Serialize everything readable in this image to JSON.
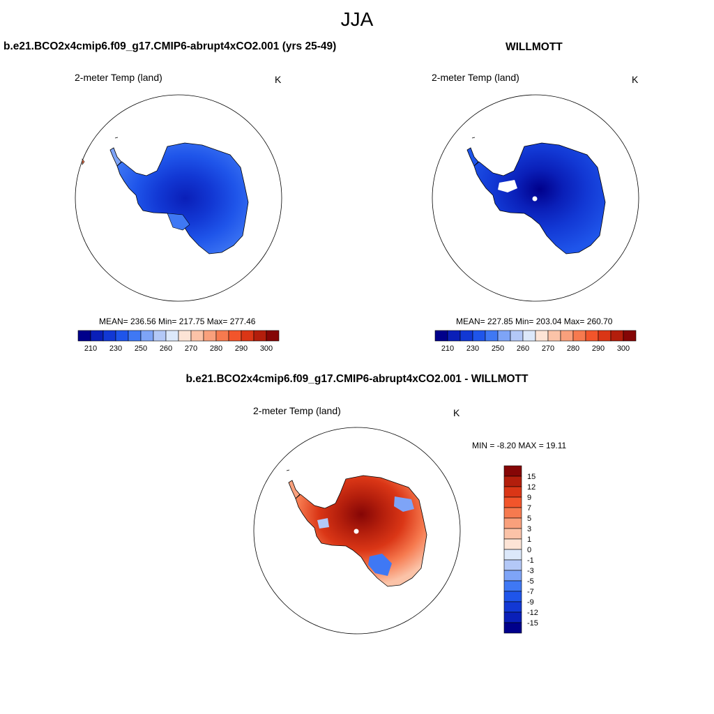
{
  "season": "JJA",
  "panels": [
    {
      "title": "b.e21.BCO2x4cmip6.f09_g17.CMIP6-abrupt4xCO2.001 (yrs 25-49)",
      "variable": "2-meter Temp (land)",
      "units": "K",
      "stats": "MEAN= 236.56  Min= 217.75  Max= 277.46"
    },
    {
      "title": "WILLMOTT",
      "variable": "2-meter Temp (land)",
      "units": "K",
      "stats": "MEAN= 227.85  Min= 203.04  Max= 260.70"
    },
    {
      "title": "b.e21.BCO2x4cmip6.f09_g17.CMIP6-abrupt4xCO2.001 - WILLMOTT",
      "variable": "2-meter Temp (land)",
      "units": "K",
      "stats": "MIN =  -8.20 MAX =  19.11"
    }
  ],
  "temp_colorbar": {
    "colors": [
      "#00008b",
      "#0a1fb8",
      "#1238d4",
      "#1f55ea",
      "#3f78f4",
      "#7ea4f7",
      "#b3c8f7",
      "#dce8fa",
      "#fde4d6",
      "#fbc3a8",
      "#f9a07c",
      "#f67a4f",
      "#f2552b",
      "#da3616",
      "#b31e0c",
      "#850606"
    ],
    "labels": [
      "210",
      "230",
      "250",
      "260",
      "270",
      "280",
      "290",
      "300"
    ]
  },
  "diff_colorbar": {
    "colors": [
      "#850606",
      "#b31e0c",
      "#da3616",
      "#f2552b",
      "#f67a4f",
      "#f9a07c",
      "#fbc3a8",
      "#fde4d6",
      "#dce8fa",
      "#b3c8f7",
      "#7ea4f7",
      "#3f78f4",
      "#1f55ea",
      "#1238d4",
      "#0a1fb8",
      "#00008b"
    ],
    "labels": [
      "15",
      "12",
      "9",
      "7",
      "5",
      "3",
      "1",
      "0",
      "-1",
      "-3",
      "-5",
      "-7",
      "-9",
      "-12",
      "-15"
    ]
  }
}
